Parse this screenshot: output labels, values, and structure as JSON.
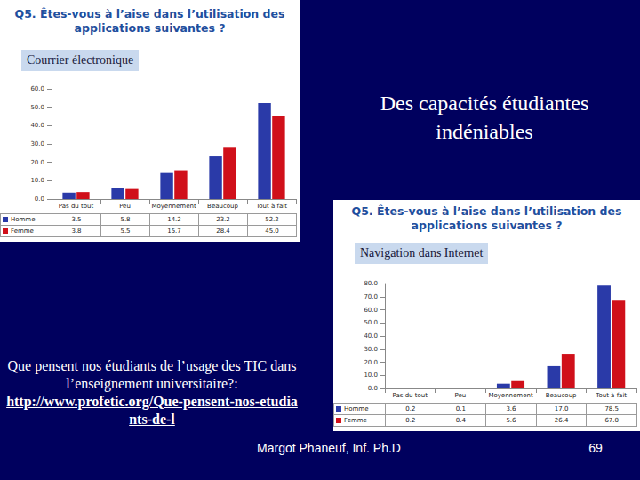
{
  "slide": {
    "heading": "Des capacités étudiantes indéniables",
    "caption": "Que pensent nos étudiants de l’usage des TIC dans l’enseignement universitaire?:",
    "link": "http://www.profetic.org/Que-pensent-nos-etudiants-de-l",
    "author": "Margot Phaneuf, Inf. Ph.D",
    "page": "69"
  },
  "chart_data": [
    {
      "type": "bar",
      "title": "Q5. Êtes-vous à l’aise dans l’utilisation des applications suivantes ?",
      "subtitle": "Courrier électronique",
      "categories": [
        "Pas du tout",
        "Peu",
        "Moyennement",
        "Beaucoup",
        "Tout à fait"
      ],
      "series": [
        {
          "name": "Homme",
          "color": "#2a3aa8",
          "values": [
            3.5,
            5.8,
            14.2,
            23.2,
            52.2
          ],
          "value_labels": [
            "3.5",
            "5.8",
            "14.2",
            "23.2",
            "52.2"
          ]
        },
        {
          "name": "Femme",
          "color": "#d0101a",
          "values": [
            3.8,
            5.5,
            15.7,
            28.4,
            45.0
          ],
          "value_labels": [
            "3.8",
            "5.5",
            "15.7",
            "28.4",
            "45.0"
          ]
        }
      ],
      "ylim": [
        0,
        60
      ],
      "yticks": [
        {
          "value": 0,
          "label": "0.0"
        },
        {
          "value": 10,
          "label": "10.0"
        },
        {
          "value": 20,
          "label": "20.0"
        },
        {
          "value": 30,
          "label": "30.0"
        },
        {
          "value": 40,
          "label": "40.0"
        },
        {
          "value": 50,
          "label": "50.0"
        },
        {
          "value": 60,
          "label": "60.0"
        }
      ],
      "grid": false
    },
    {
      "type": "bar",
      "title": "Q5. Êtes-vous à l’aise dans l’utilisation des applications suivantes ?",
      "subtitle": "Navigation dans Internet",
      "categories": [
        "Pas du tout",
        "Peu",
        "Moyennement",
        "Beaucoup",
        "Tout à fait"
      ],
      "series": [
        {
          "name": "Homme",
          "color": "#2a3aa8",
          "values": [
            0.2,
            0.1,
            3.6,
            17.0,
            78.5
          ],
          "value_labels": [
            "0.2",
            "0.1",
            "3.6",
            "17.0",
            "78.5"
          ]
        },
        {
          "name": "Femme",
          "color": "#d0101a",
          "values": [
            0.2,
            0.4,
            5.6,
            26.4,
            67.0
          ],
          "value_labels": [
            "0.2",
            "0.4",
            "5.6",
            "26.4",
            "67.0"
          ]
        }
      ],
      "ylim": [
        0,
        80
      ],
      "yticks": [
        {
          "value": 0,
          "label": "0.0"
        },
        {
          "value": 10,
          "label": "10.0"
        },
        {
          "value": 20,
          "label": "20.0"
        },
        {
          "value": 30,
          "label": "30.0"
        },
        {
          "value": 40,
          "label": "40.0"
        },
        {
          "value": 50,
          "label": "50.0"
        },
        {
          "value": 60,
          "label": "60.0"
        },
        {
          "value": 70,
          "label": "70.0"
        },
        {
          "value": 80,
          "label": "80.0"
        }
      ],
      "grid": false
    }
  ]
}
